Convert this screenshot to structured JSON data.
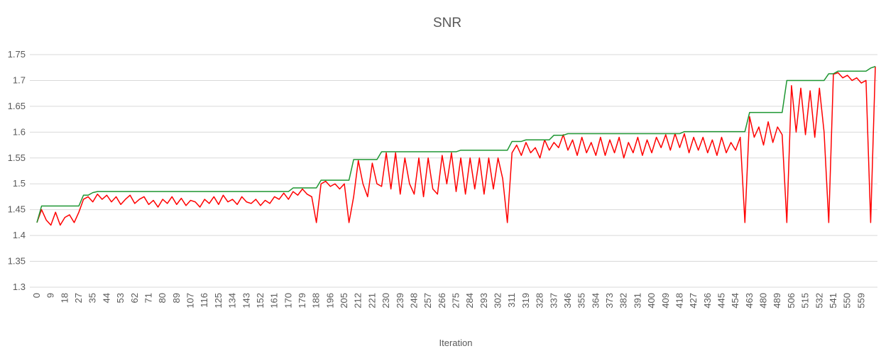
{
  "chart_data": {
    "type": "line",
    "title": "SNR",
    "x_label": "Iteration",
    "categories": [
      0,
      null,
      null,
      9,
      null,
      null,
      18,
      null,
      null,
      27,
      null,
      null,
      35,
      null,
      null,
      44,
      null,
      null,
      53,
      null,
      null,
      62,
      null,
      null,
      71,
      null,
      null,
      80,
      null,
      null,
      89,
      null,
      null,
      107,
      null,
      null,
      116,
      null,
      null,
      125,
      null,
      null,
      134,
      null,
      null,
      143,
      null,
      null,
      152,
      null,
      null,
      161,
      null,
      null,
      170,
      null,
      null,
      179,
      null,
      null,
      188,
      null,
      null,
      196,
      null,
      null,
      205,
      null,
      null,
      212,
      null,
      null,
      221,
      null,
      null,
      230,
      null,
      null,
      239,
      null,
      null,
      248,
      null,
      null,
      257,
      null,
      null,
      266,
      null,
      null,
      275,
      null,
      null,
      284,
      null,
      null,
      293,
      null,
      null,
      302,
      null,
      null,
      311,
      null,
      null,
      319,
      null,
      null,
      328,
      null,
      null,
      337,
      null,
      null,
      346,
      null,
      null,
      355,
      null,
      null,
      364,
      null,
      null,
      373,
      null,
      null,
      382,
      null,
      null,
      391,
      null,
      null,
      400,
      null,
      null,
      409,
      null,
      null,
      418,
      null,
      null,
      427,
      null,
      null,
      436,
      null,
      null,
      445,
      null,
      null,
      454,
      null,
      null,
      463,
      null,
      null,
      480,
      null,
      null,
      489,
      null,
      null,
      506,
      null,
      null,
      515,
      null,
      null,
      532,
      null,
      null,
      541,
      null,
      null,
      550,
      null,
      null,
      559,
      null,
      null,
      null
    ],
    "series": [
      {
        "color": "#ff0000",
        "values": [
          1.425,
          1.45,
          1.43,
          1.42,
          1.445,
          1.42,
          1.435,
          1.44,
          1.425,
          1.445,
          1.47,
          1.475,
          1.465,
          1.48,
          1.47,
          1.478,
          1.465,
          1.475,
          1.46,
          1.47,
          1.478,
          1.462,
          1.47,
          1.475,
          1.46,
          1.468,
          1.455,
          1.47,
          1.462,
          1.475,
          1.46,
          1.472,
          1.458,
          1.468,
          1.465,
          1.455,
          1.47,
          1.462,
          1.475,
          1.46,
          1.478,
          1.465,
          1.47,
          1.46,
          1.475,
          1.465,
          1.462,
          1.47,
          1.458,
          1.468,
          1.462,
          1.475,
          1.47,
          1.482,
          1.47,
          1.485,
          1.478,
          1.49,
          1.48,
          1.475,
          1.425,
          1.5,
          1.505,
          1.495,
          1.5,
          1.49,
          1.5,
          1.425,
          1.475,
          1.545,
          1.5,
          1.475,
          1.54,
          1.5,
          1.495,
          1.56,
          1.49,
          1.56,
          1.48,
          1.55,
          1.5,
          1.48,
          1.55,
          1.475,
          1.55,
          1.49,
          1.48,
          1.555,
          1.5,
          1.56,
          1.485,
          1.55,
          1.48,
          1.55,
          1.49,
          1.55,
          1.48,
          1.55,
          1.49,
          1.55,
          1.51,
          1.425,
          1.56,
          1.575,
          1.555,
          1.58,
          1.56,
          1.57,
          1.55,
          1.585,
          1.565,
          1.58,
          1.57,
          1.595,
          1.565,
          1.585,
          1.555,
          1.59,
          1.56,
          1.58,
          1.555,
          1.59,
          1.555,
          1.585,
          1.56,
          1.59,
          1.55,
          1.58,
          1.56,
          1.59,
          1.555,
          1.585,
          1.56,
          1.59,
          1.57,
          1.595,
          1.565,
          1.597,
          1.57,
          1.597,
          1.56,
          1.59,
          1.565,
          1.59,
          1.56,
          1.585,
          1.555,
          1.59,
          1.56,
          1.58,
          1.565,
          1.59,
          1.425,
          1.63,
          1.59,
          1.61,
          1.575,
          1.62,
          1.58,
          1.61,
          1.595,
          1.425,
          1.69,
          1.6,
          1.685,
          1.595,
          1.68,
          1.59,
          1.685,
          1.6,
          1.425,
          1.712,
          1.715,
          1.705,
          1.71,
          1.7,
          1.705,
          1.695,
          1.7,
          1.425,
          1.727
        ]
      },
      {
        "color": "#1e9632",
        "values": [
          1.425,
          1.457,
          1.457,
          1.457,
          1.457,
          1.457,
          1.457,
          1.457,
          1.457,
          1.457,
          1.478,
          1.478,
          1.483,
          1.485,
          1.485,
          1.485,
          1.485,
          1.485,
          1.485,
          1.485,
          1.485,
          1.485,
          1.485,
          1.485,
          1.485,
          1.485,
          1.485,
          1.485,
          1.485,
          1.485,
          1.485,
          1.485,
          1.485,
          1.485,
          1.485,
          1.485,
          1.485,
          1.485,
          1.485,
          1.485,
          1.485,
          1.485,
          1.485,
          1.485,
          1.485,
          1.485,
          1.485,
          1.485,
          1.485,
          1.485,
          1.485,
          1.485,
          1.485,
          1.485,
          1.485,
          1.492,
          1.492,
          1.492,
          1.492,
          1.492,
          1.492,
          1.507,
          1.507,
          1.507,
          1.507,
          1.507,
          1.507,
          1.507,
          1.547,
          1.547,
          1.547,
          1.547,
          1.547,
          1.547,
          1.562,
          1.562,
          1.562,
          1.562,
          1.562,
          1.562,
          1.562,
          1.562,
          1.562,
          1.562,
          1.562,
          1.562,
          1.562,
          1.562,
          1.562,
          1.562,
          1.562,
          1.565,
          1.565,
          1.565,
          1.565,
          1.565,
          1.565,
          1.565,
          1.565,
          1.565,
          1.565,
          1.565,
          1.582,
          1.582,
          1.582,
          1.585,
          1.585,
          1.585,
          1.585,
          1.585,
          1.585,
          1.594,
          1.594,
          1.594,
          1.597,
          1.597,
          1.597,
          1.597,
          1.597,
          1.597,
          1.597,
          1.597,
          1.597,
          1.597,
          1.597,
          1.597,
          1.597,
          1.597,
          1.597,
          1.597,
          1.597,
          1.597,
          1.597,
          1.597,
          1.597,
          1.597,
          1.597,
          1.597,
          1.597,
          1.601,
          1.601,
          1.601,
          1.601,
          1.601,
          1.601,
          1.601,
          1.601,
          1.601,
          1.601,
          1.601,
          1.601,
          1.601,
          1.601,
          1.638,
          1.638,
          1.638,
          1.638,
          1.638,
          1.638,
          1.638,
          1.638,
          1.7,
          1.7,
          1.7,
          1.7,
          1.7,
          1.7,
          1.7,
          1.7,
          1.7,
          1.713,
          1.713,
          1.718,
          1.718,
          1.718,
          1.718,
          1.718,
          1.718,
          1.718,
          1.724,
          1.727
        ]
      }
    ],
    "ylim": [
      1.3,
      1.75
    ],
    "yticks": [
      1.3,
      1.35,
      1.4,
      1.45,
      1.5,
      1.55,
      1.6,
      1.65,
      1.7,
      1.75
    ],
    "grid": true
  }
}
